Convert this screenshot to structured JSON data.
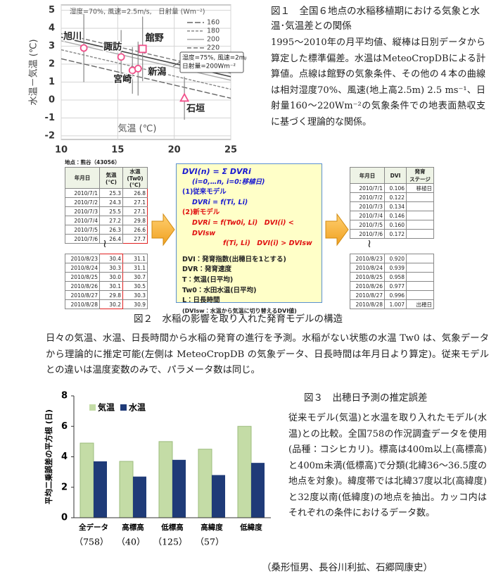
{
  "chart_data": [
    {
      "type": "scatter",
      "xlabel": "気温 (℃)",
      "ylabel": "水温－気温 (℃)",
      "legend_title": "湿度=70%, 風速=2.5m/s,　日射量 (Wm⁻²)",
      "xlim": [
        10,
        25
      ],
      "ylim": [
        -2.2,
        5.3
      ],
      "xticks": [
        10,
        15,
        20,
        25
      ],
      "yticks": [
        -2,
        -1,
        0,
        1,
        2,
        3,
        4,
        5
      ],
      "grid": true,
      "labels": [
        "旭川",
        "諏訪",
        "館野",
        "宮崎",
        "新潟",
        "石垣"
      ],
      "markers": [
        "circle",
        "circle",
        "square",
        "circle",
        "circle",
        "triangle"
      ],
      "color": "#f0508a",
      "x": [
        12.0,
        15.3,
        17.2,
        16.3,
        16.8,
        20.9
      ],
      "values": [
        2.9,
        2.4,
        2.85,
        1.65,
        1.75,
        0.1
      ],
      "errors": [
        1.9,
        1.5,
        1.8,
        1.3,
        1.5,
        1.2
      ],
      "series": [
        {
          "name": "160",
          "color": "#666666",
          "dash": "8 3",
          "x": [
            10,
            25
          ],
          "values": [
            2.3,
            0.1
          ]
        },
        {
          "name": "180",
          "color": "#888888",
          "dash": "4 2",
          "x": [
            10,
            25
          ],
          "values": [
            2.8,
            0.6
          ]
        },
        {
          "name": "200",
          "color": "#aaaaaa",
          "dash": "none",
          "x": [
            10,
            25
          ],
          "values": [
            3.3,
            1.1
          ]
        },
        {
          "name": "220",
          "color": "#777777",
          "dash": "6 3",
          "x": [
            10,
            25
          ],
          "values": [
            3.7,
            1.5
          ]
        }
      ],
      "annotation": {
        "text": [
          "湿度=75%, 風速=2m/s,",
          "日射量=200Wm⁻²"
        ],
        "color": "#444444",
        "x": [
          10,
          25
        ],
        "values": [
          3.5,
          1.3
        ]
      }
    },
    {
      "type": "bar",
      "ylabel": "平均二乗誤差の平方根 (日)",
      "ylim": [
        0,
        8
      ],
      "yticks": [
        0,
        2,
        4,
        6,
        8
      ],
      "categories": [
        "全データ",
        "高標高",
        "低標高",
        "高緯度",
        "低緯度"
      ],
      "sub_labels": [
        "（758）",
        "（40）",
        "（125）",
        "（57）",
        null
      ],
      "series": [
        {
          "name": "気温",
          "color": "#c4dca6",
          "values": [
            4.9,
            3.7,
            5.0,
            4.5,
            6.0
          ]
        },
        {
          "name": "水温",
          "color": "#1f3b78",
          "values": [
            3.7,
            2.7,
            3.8,
            2.8,
            3.6
          ]
        }
      ]
    }
  ],
  "figure1": {
    "caption": "図１　全国６地点の水稲移植期における気象と水温･気温差との関係",
    "description": "1995～2010年の月平均値、縦棒は日別データから算定した標準偏差。水温はMeteoCropDBによる計算値。点線は館野の気象条件、その他の４本の曲線は相対湿度70%、風速(地上高2.5m) 2.5 ms⁻¹、日射量160～220Wm⁻²の気象条件での地表面熱収支に基づく理論的な関係。"
  },
  "figure2": {
    "station": "地点：熊谷（43056）",
    "break_mark": "≀",
    "left_header": [
      "年月日",
      "気温\n(℃)",
      "水温 (Tw0)\n(℃)"
    ],
    "left_top": [
      [
        "2010/7/1",
        "25.3",
        "26.8"
      ],
      [
        "2010/7/2",
        "24.3",
        "27.1"
      ],
      [
        "2010/7/3",
        "25.5",
        "27.1"
      ],
      [
        "2010/7/4",
        "27.2",
        "29.8"
      ],
      [
        "2010/7/5",
        "26.3",
        "26.6"
      ],
      [
        "2010/7/6",
        "26.4",
        "27.7"
      ]
    ],
    "left_bottom": [
      [
        "2010/8/23",
        "30.4",
        "31.1"
      ],
      [
        "2010/8/24",
        "30.3",
        "31.1"
      ],
      [
        "2010/8/25",
        "30.0",
        "30.7"
      ],
      [
        "2010/8/26",
        "30.1",
        "30.5"
      ],
      [
        "2010/8/27",
        "29.8",
        "30.3"
      ],
      [
        "2010/8/28",
        "30.2",
        "30.9"
      ]
    ],
    "right_header": [
      "年月日",
      "DVI",
      "発育\nステージ"
    ],
    "right_top": [
      [
        "2010/7/1",
        "0.106",
        "移植日"
      ],
      [
        "2010/7/2",
        "0.122"
      ],
      [
        "2010/7/3",
        "0.134"
      ],
      [
        "2010/7/4",
        "0.146"
      ],
      [
        "2010/7/5",
        "0.160"
      ],
      [
        "2010/7/6",
        "0.172"
      ]
    ],
    "right_bottom": [
      [
        "2010/8/23",
        "0.920"
      ],
      [
        "2010/8/24",
        "0.939"
      ],
      [
        "2010/8/25",
        "0.958"
      ],
      [
        "2010/8/26",
        "0.977"
      ],
      [
        "2010/8/27",
        "0.996"
      ],
      [
        "2010/8/28",
        "1.007",
        "出穂日"
      ]
    ],
    "formula": [
      "DVI(n) = Σ DVRi",
      "(i=0,…n, i=0:移植日)",
      "(1)従来モデル",
      "DVRi = f(Ti, Li)",
      "(2)新モデル",
      "DVRi = f(Tw0i, Li)　DVI(i) < DVIsw",
      "f(Ti, Li)　DVI(i) > DVIsw",
      "DVI：発育指数(出穂日を1とする)",
      "DVR：発育速度",
      "T：気温(日平均)",
      "Tw0：水田水温(日平均)",
      "L：日長時間",
      "(DVIsw：水温から気温に切り替えるDVI値)"
    ],
    "caption": "図２　水稲の影響を取り入れた発育モデルの構造",
    "description": "日々の気温、水温、日長時間から水稲の発育の進行を予測。水稲がない状態の水温 Tw0 は、気象データから理論的に推定可能(左側は MeteoCropDB の気象データ、日長時間は年月日より算定)。従来モデルとの違いは温度変数のみで、パラメータ数は同じ。"
  },
  "figure3": {
    "caption": "図３　出穂日予測の推定誤差",
    "description": "従来モデル(気温)と水温を取り入れたモデル(水温)との比較。全国758の作況調査データを使用(品種：コシヒカリ)。標高は400m以上(高標高)と400m未満(低標高)で分類(北緯36～36.5度の地点を対象)。緯度帯では北緯37度以北(高緯度)と32度以南(低緯度)の地点を抽出。カッコ内はそれぞれの条件におけるデータ数。"
  },
  "author": "（桑形恒男、長谷川利拡、石郷岡康史）"
}
